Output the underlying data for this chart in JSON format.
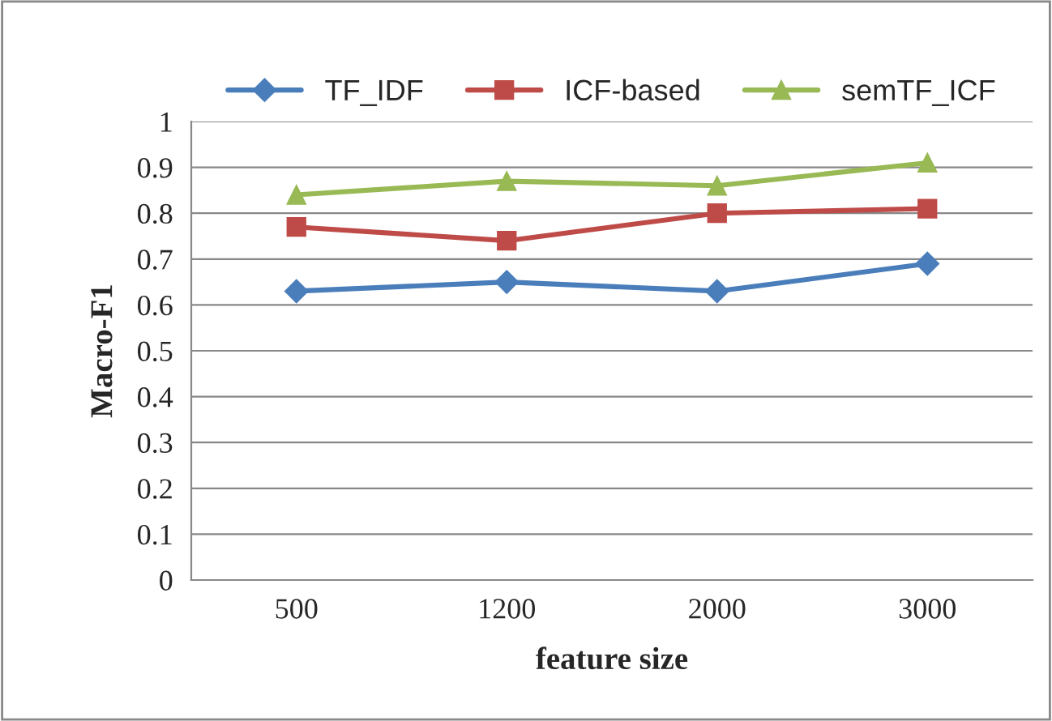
{
  "chart_data": {
    "type": "line",
    "xlabel": "feature size",
    "ylabel": "Macro-F1",
    "categories": [
      "500",
      "1200",
      "2000",
      "3000"
    ],
    "series": [
      {
        "name": "TF_IDF",
        "color": "#4a7ebb",
        "marker": "diamond",
        "values": [
          0.63,
          0.65,
          0.63,
          0.69
        ]
      },
      {
        "name": "ICF-based",
        "color": "#be4b48",
        "marker": "square",
        "values": [
          0.77,
          0.74,
          0.8,
          0.81
        ]
      },
      {
        "name": "semTF_ICF",
        "color": "#98b954",
        "marker": "triangle",
        "values": [
          0.84,
          0.87,
          0.86,
          0.91
        ]
      }
    ],
    "ylim": [
      0,
      1
    ],
    "yticks": [
      0,
      0.1,
      0.2,
      0.3,
      0.4,
      0.5,
      0.6,
      0.7,
      0.8,
      0.9,
      1
    ],
    "grid": "y",
    "legend": "top",
    "line_style": "solid"
  }
}
